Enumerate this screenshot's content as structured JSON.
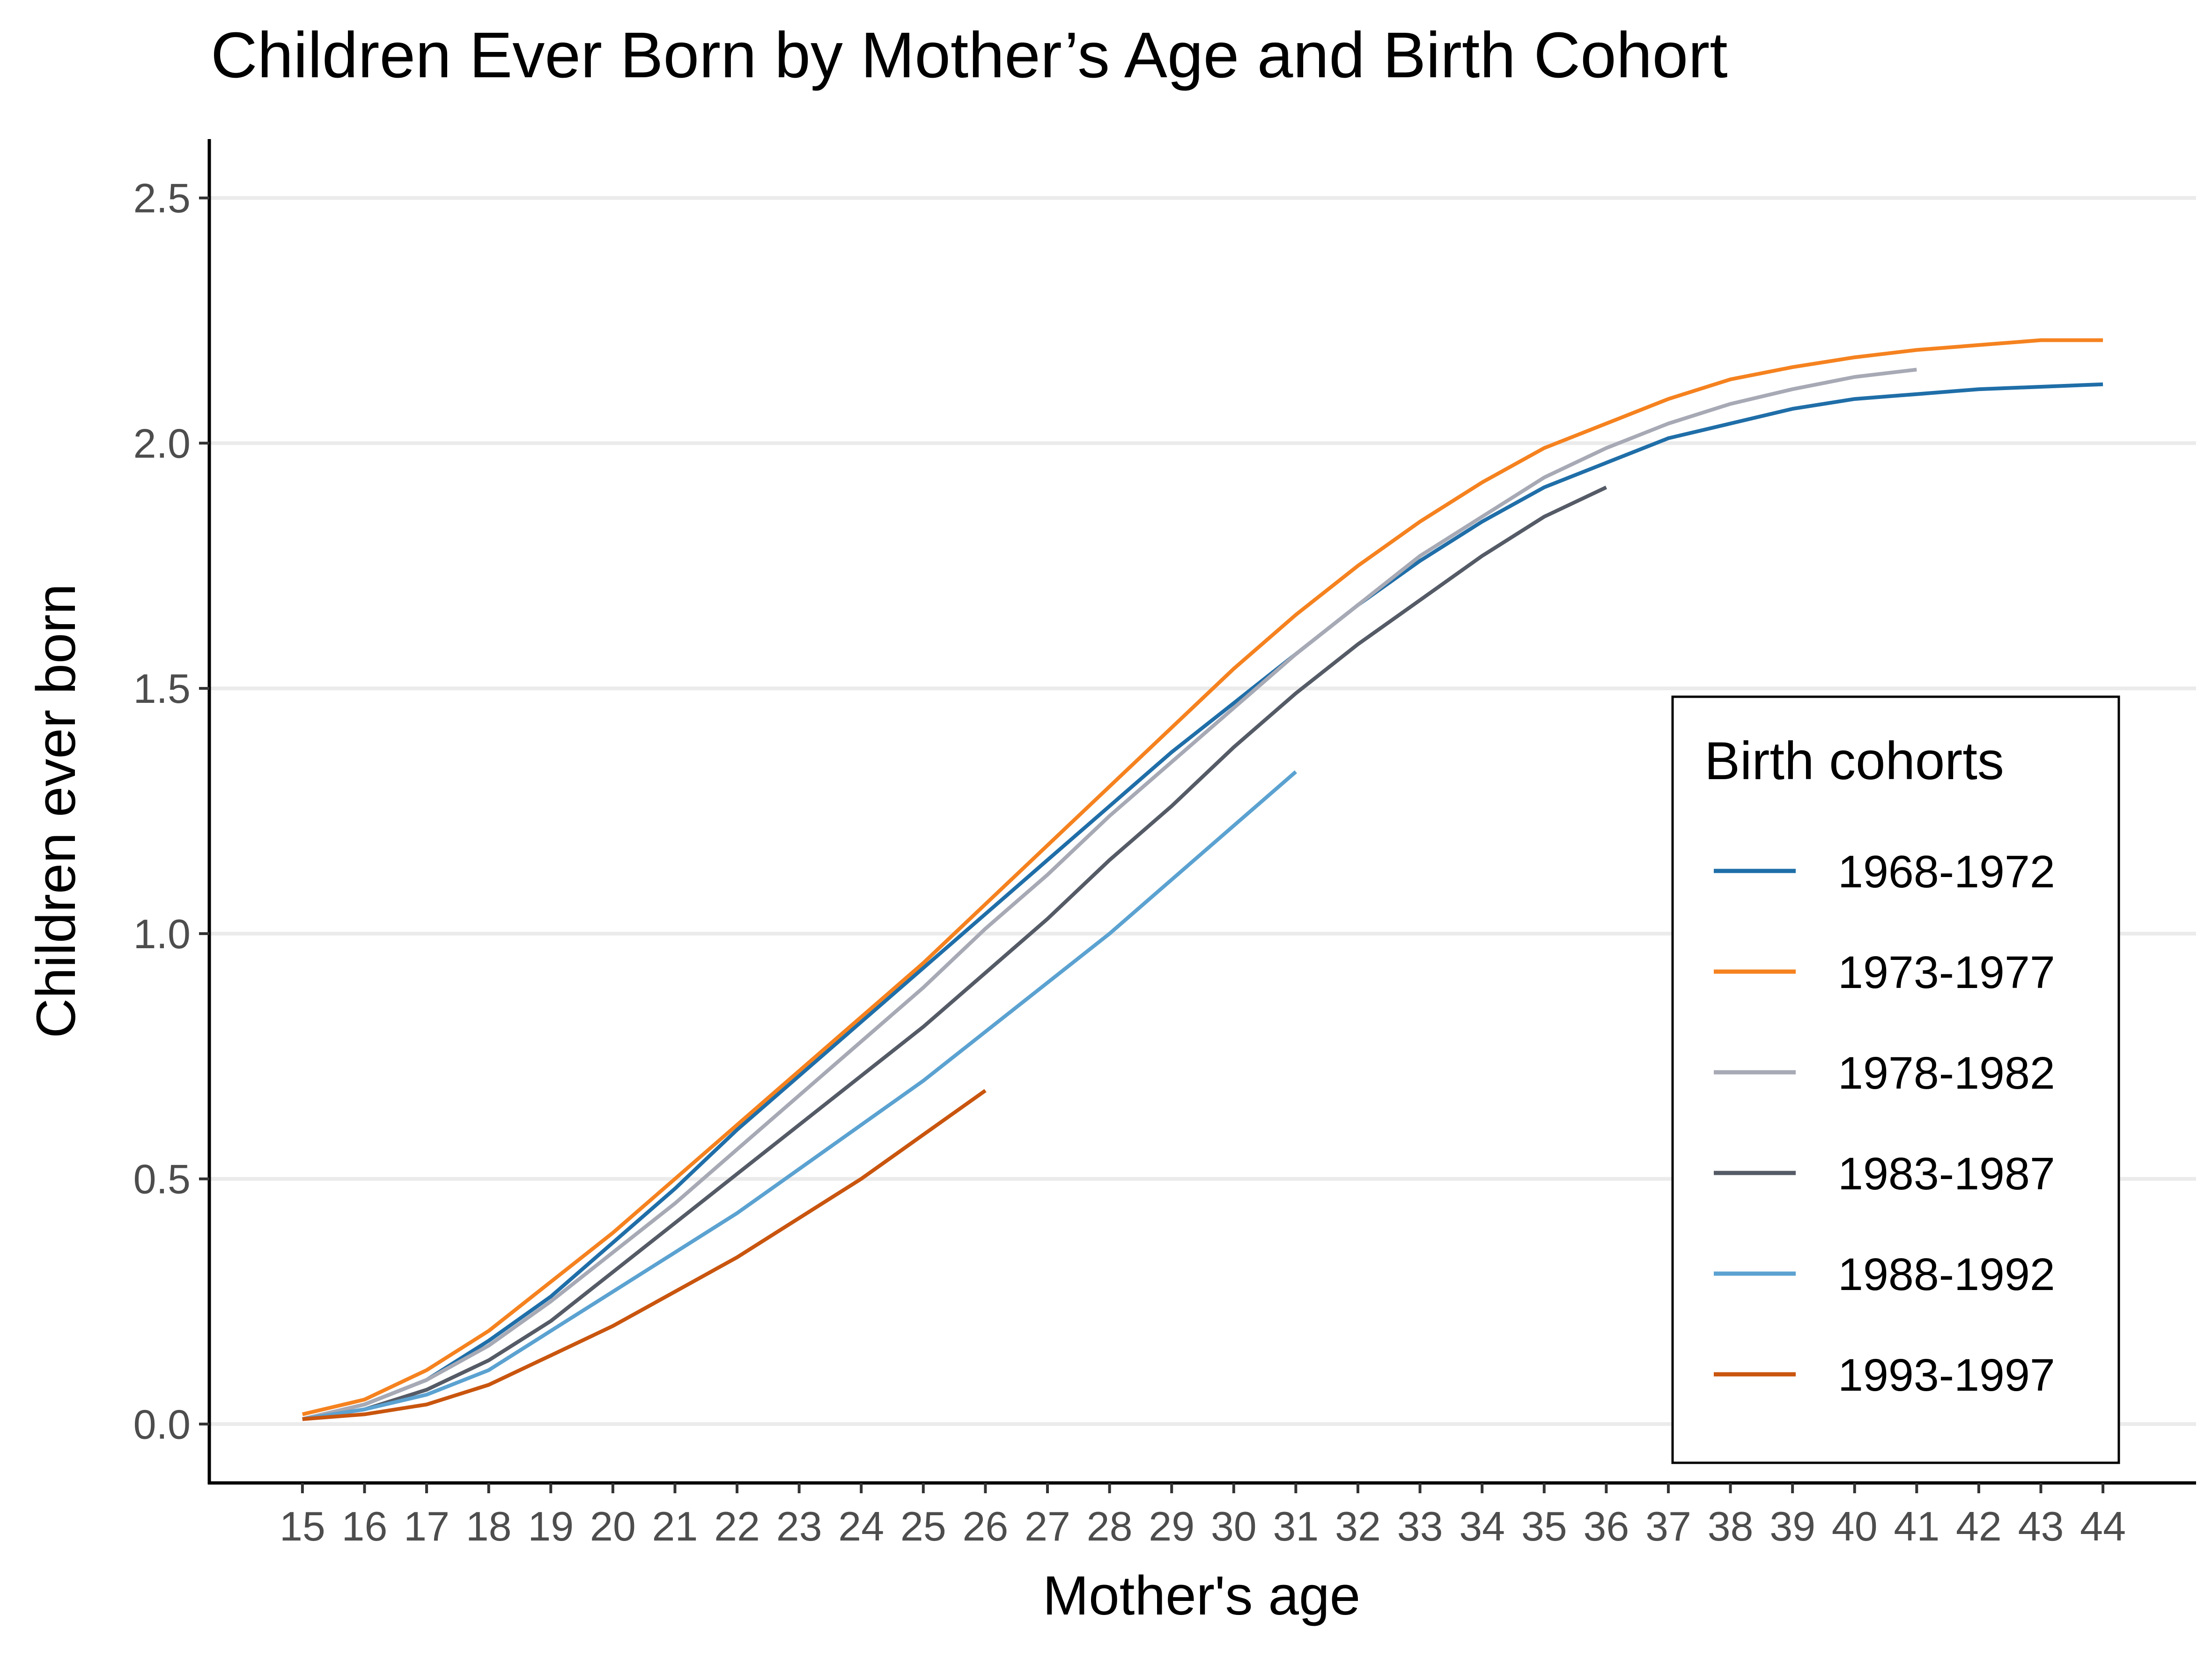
{
  "chart_data": {
    "type": "line",
    "title": "Children Ever Born by Mother’s Age and Birth Cohort",
    "xlabel": "Mother's age",
    "ylabel": "Children ever born",
    "xlim": [
      13.5,
      45.5
    ],
    "ylim": [
      -0.12,
      2.62
    ],
    "yticks": [
      0.0,
      0.5,
      1.0,
      1.5,
      2.0,
      2.5
    ],
    "ytick_labels": [
      "0.0",
      "0.5",
      "1.0",
      "1.5",
      "2.0",
      "2.5"
    ],
    "xticks": [
      15,
      16,
      17,
      18,
      19,
      20,
      21,
      22,
      23,
      24,
      25,
      26,
      27,
      28,
      29,
      30,
      31,
      32,
      33,
      34,
      35,
      36,
      37,
      38,
      39,
      40,
      41,
      42,
      43,
      44
    ],
    "xtick_labels": [
      "15",
      "16",
      "17",
      "18",
      "19",
      "20",
      "21",
      "22",
      "23",
      "24",
      "25",
      "26",
      "27",
      "28",
      "29",
      "30",
      "31",
      "32",
      "33",
      "34",
      "35",
      "36",
      "37",
      "38",
      "39",
      "40",
      "41",
      "42",
      "43",
      "44"
    ],
    "grid": "horizontal major",
    "legend": {
      "title": "Birth cohorts",
      "position": "right"
    },
    "series": [
      {
        "name": "1968-1972",
        "color": "#1f6ea8",
        "x": [
          15,
          16,
          17,
          18,
          19,
          20,
          21,
          22,
          23,
          24,
          25,
          26,
          27,
          28,
          29,
          30,
          31,
          32,
          33,
          34,
          35,
          36,
          37,
          38,
          39,
          40,
          41,
          42,
          43,
          44
        ],
        "values": [
          0.01,
          0.04,
          0.09,
          0.17,
          0.26,
          0.37,
          0.48,
          0.6,
          0.71,
          0.82,
          0.93,
          1.04,
          1.15,
          1.26,
          1.37,
          1.47,
          1.57,
          1.67,
          1.76,
          1.84,
          1.91,
          1.96,
          2.01,
          2.04,
          2.07,
          2.09,
          2.1,
          2.11,
          2.115,
          2.12
        ]
      },
      {
        "name": "1973-1977",
        "color": "#f5821f",
        "x": [
          15,
          16,
          17,
          18,
          19,
          20,
          21,
          22,
          23,
          24,
          25,
          26,
          27,
          28,
          29,
          30,
          31,
          32,
          33,
          34,
          35,
          36,
          37,
          38,
          39,
          40,
          41,
          42,
          43,
          44
        ],
        "values": [
          0.02,
          0.05,
          0.11,
          0.19,
          0.29,
          0.39,
          0.5,
          0.61,
          0.72,
          0.83,
          0.94,
          1.06,
          1.18,
          1.3,
          1.42,
          1.54,
          1.65,
          1.75,
          1.84,
          1.92,
          1.99,
          2.04,
          2.09,
          2.13,
          2.155,
          2.175,
          2.19,
          2.2,
          2.21,
          2.21
        ]
      },
      {
        "name": "1978-1982",
        "color": "#a7aab5",
        "x": [
          15,
          16,
          17,
          18,
          19,
          20,
          21,
          22,
          23,
          24,
          25,
          26,
          27,
          28,
          29,
          30,
          31,
          32,
          33,
          34,
          35,
          36,
          37,
          38,
          39,
          40,
          41
        ],
        "values": [
          0.01,
          0.04,
          0.09,
          0.16,
          0.25,
          0.35,
          0.45,
          0.56,
          0.67,
          0.78,
          0.89,
          1.01,
          1.12,
          1.24,
          1.35,
          1.46,
          1.57,
          1.67,
          1.77,
          1.85,
          1.93,
          1.99,
          2.04,
          2.08,
          2.11,
          2.135,
          2.15
        ]
      },
      {
        "name": "1983-1987",
        "color": "#555b66",
        "x": [
          15,
          16,
          17,
          18,
          19,
          20,
          21,
          22,
          23,
          24,
          25,
          26,
          27,
          28,
          29,
          30,
          31,
          32,
          33,
          34,
          35,
          36
        ],
        "values": [
          0.01,
          0.03,
          0.07,
          0.13,
          0.21,
          0.31,
          0.41,
          0.51,
          0.61,
          0.71,
          0.81,
          0.92,
          1.03,
          1.15,
          1.26,
          1.38,
          1.49,
          1.59,
          1.68,
          1.77,
          1.85,
          1.91
        ]
      },
      {
        "name": "1988-1992",
        "color": "#5ba2d1",
        "x": [
          15,
          16,
          17,
          18,
          19,
          20,
          21,
          22,
          23,
          24,
          25,
          26,
          27,
          28,
          29,
          30,
          31
        ],
        "values": [
          0.01,
          0.03,
          0.06,
          0.11,
          0.19,
          0.27,
          0.35,
          0.43,
          0.52,
          0.61,
          0.7,
          0.8,
          0.9,
          1.0,
          1.11,
          1.22,
          1.33
        ]
      },
      {
        "name": "1993-1997",
        "color": "#c9550e",
        "x": [
          15,
          16,
          17,
          18,
          19,
          20,
          21,
          22,
          23,
          24,
          25,
          26
        ],
        "values": [
          0.01,
          0.02,
          0.04,
          0.08,
          0.14,
          0.2,
          0.27,
          0.34,
          0.42,
          0.5,
          0.59,
          0.68
        ]
      }
    ]
  }
}
